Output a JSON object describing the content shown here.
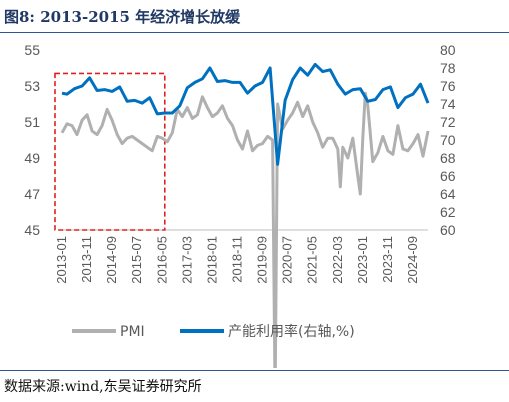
{
  "header": {
    "figure_label": "图8:",
    "title": "2013-2015 年经济增长放缓"
  },
  "footer": {
    "source": "数据来源:wind,东吴证券研究所"
  },
  "chart_data": {
    "type": "line",
    "title": "图8: 2013-2015 年经济增长放缓",
    "x_tick_labels": [
      "2013-01",
      "2013-11",
      "2014-09",
      "2015-07",
      "2016-05",
      "2017-03",
      "2018-01",
      "2018-11",
      "2019-09",
      "2020-07",
      "2021-05",
      "2022-03",
      "2023-01",
      "2023-11",
      "2024-09"
    ],
    "x_range": [
      "2013-01",
      "2025-03"
    ],
    "y_left": {
      "ticks": [
        45,
        47,
        49,
        51,
        53,
        55
      ],
      "range": [
        45,
        55
      ]
    },
    "y_right": {
      "ticks": [
        60,
        62,
        64,
        66,
        68,
        70,
        72,
        74,
        76,
        78,
        80
      ],
      "range": [
        60,
        80
      ]
    },
    "highlight_box": {
      "x_start": "2013-01",
      "x_end": "2016-06",
      "y_left_start": 45,
      "y_left_end": 53.7,
      "style": "red-dashed"
    },
    "legend_position": "bottom",
    "colors": {
      "pmi": "#b0b0b0",
      "capacity": "#0070c0",
      "highlight": "#e02020",
      "axis_text": "#595959",
      "title": "#1f3864"
    },
    "series": [
      {
        "name": "PMI",
        "axis": "left",
        "x": [
          "2013-01",
          "2013-03",
          "2013-05",
          "2013-07",
          "2013-09",
          "2013-11",
          "2014-01",
          "2014-03",
          "2014-05",
          "2014-07",
          "2014-09",
          "2014-11",
          "2015-01",
          "2015-03",
          "2015-05",
          "2015-07",
          "2015-09",
          "2015-11",
          "2016-01",
          "2016-03",
          "2016-05",
          "2016-07",
          "2016-09",
          "2016-11",
          "2017-01",
          "2017-03",
          "2017-05",
          "2017-07",
          "2017-09",
          "2017-11",
          "2018-01",
          "2018-03",
          "2018-05",
          "2018-07",
          "2018-09",
          "2018-11",
          "2019-01",
          "2019-03",
          "2019-05",
          "2019-07",
          "2019-09",
          "2019-11",
          "2020-01",
          "2020-02",
          "2020-03",
          "2020-05",
          "2020-07",
          "2020-09",
          "2020-11",
          "2021-01",
          "2021-03",
          "2021-05",
          "2021-07",
          "2021-09",
          "2021-11",
          "2022-01",
          "2022-03",
          "2022-04",
          "2022-05",
          "2022-07",
          "2022-09",
          "2022-11",
          "2022-12",
          "2023-01",
          "2023-02",
          "2023-03",
          "2023-05",
          "2023-07",
          "2023-09",
          "2023-11",
          "2024-01",
          "2024-03",
          "2024-05",
          "2024-07",
          "2024-09",
          "2024-11",
          "2025-01",
          "2025-03"
        ],
        "values": [
          50.4,
          50.9,
          50.8,
          50.3,
          51.1,
          51.4,
          50.5,
          50.3,
          50.8,
          51.7,
          51.1,
          50.3,
          49.8,
          50.1,
          50.2,
          50.0,
          49.8,
          49.6,
          49.4,
          50.2,
          50.1,
          49.9,
          50.4,
          51.7,
          51.3,
          51.8,
          51.2,
          51.4,
          52.4,
          51.8,
          51.3,
          51.5,
          51.9,
          51.2,
          50.8,
          50.0,
          49.5,
          50.5,
          49.4,
          49.7,
          49.8,
          50.2,
          50.0,
          35.7,
          52.0,
          50.6,
          51.1,
          51.5,
          52.1,
          51.3,
          51.9,
          51.0,
          50.4,
          49.6,
          50.1,
          50.1,
          49.5,
          47.4,
          49.6,
          49.0,
          50.1,
          48.0,
          47.0,
          50.1,
          52.6,
          51.9,
          48.8,
          49.3,
          50.2,
          49.4,
          49.2,
          50.8,
          49.5,
          49.4,
          49.8,
          50.3,
          49.1,
          50.5
        ]
      },
      {
        "name": "产能利用率(右轴,%)",
        "axis": "right",
        "x": [
          "2013-01",
          "2013-03",
          "2013-06",
          "2013-09",
          "2013-12",
          "2014-03",
          "2014-06",
          "2014-09",
          "2014-12",
          "2015-03",
          "2015-06",
          "2015-09",
          "2015-12",
          "2016-03",
          "2016-06",
          "2016-09",
          "2016-12",
          "2017-03",
          "2017-06",
          "2017-09",
          "2017-12",
          "2018-03",
          "2018-06",
          "2018-09",
          "2018-12",
          "2019-03",
          "2019-06",
          "2019-09",
          "2019-12",
          "2020-03",
          "2020-06",
          "2020-09",
          "2020-12",
          "2021-03",
          "2021-06",
          "2021-09",
          "2021-12",
          "2022-03",
          "2022-06",
          "2022-09",
          "2022-12",
          "2023-03",
          "2023-06",
          "2023-09",
          "2023-12",
          "2024-03",
          "2024-06",
          "2024-09",
          "2024-12",
          "2025-03"
        ],
        "values": [
          75.2,
          75.1,
          75.7,
          76.0,
          76.9,
          75.5,
          75.6,
          75.4,
          75.9,
          74.3,
          74.4,
          74.1,
          74.7,
          72.9,
          73.0,
          73.0,
          73.8,
          75.8,
          76.4,
          76.8,
          78.0,
          76.5,
          76.6,
          76.4,
          76.4,
          75.2,
          76.0,
          76.4,
          78.0,
          67.3,
          74.4,
          76.7,
          78.0,
          77.2,
          78.4,
          77.6,
          77.8,
          76.2,
          75.1,
          75.6,
          75.7,
          74.3,
          74.5,
          75.6,
          75.9,
          73.6,
          74.7,
          75.1,
          76.2,
          74.1
        ]
      }
    ]
  }
}
